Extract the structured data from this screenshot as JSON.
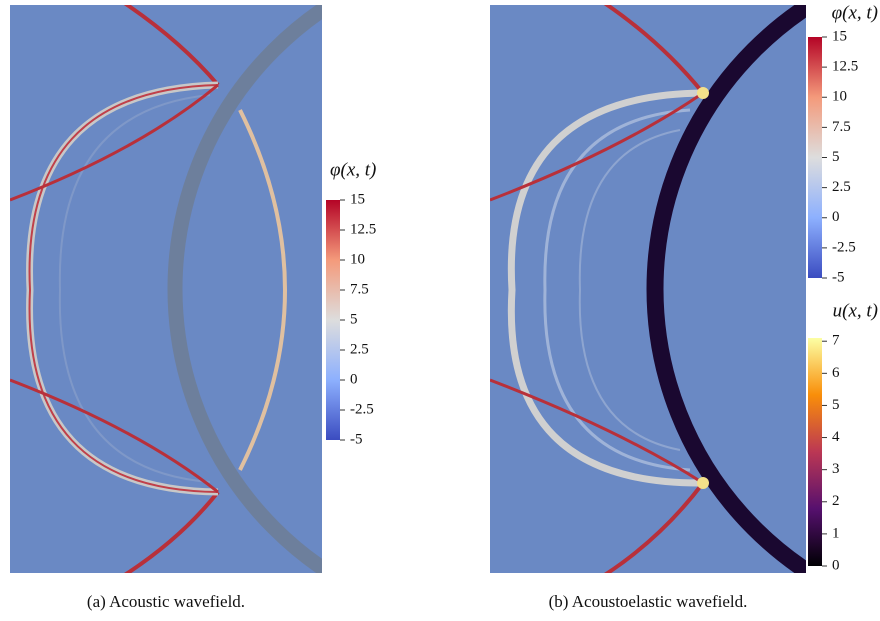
{
  "panels": [
    {
      "caption": "(a) Acoustic wavefield.",
      "colorbars": [
        {
          "title": "φ(x, t)",
          "lim": [
            -5,
            15
          ],
          "ticks": [
            15,
            12.5,
            10,
            7.5,
            5,
            2.5,
            0,
            -2.5,
            -5
          ]
        }
      ]
    },
    {
      "caption": "(b) Acoustoelastic wavefield.",
      "colorbars": [
        {
          "title": "φ(x, t)",
          "lim": [
            -5,
            15
          ],
          "ticks": [
            15,
            12.5,
            10,
            7.5,
            5,
            2.5,
            0,
            -2.5,
            -5
          ]
        },
        {
          "title": "u(x, t)",
          "lim": [
            0,
            7.1
          ],
          "ticks": [
            7,
            6,
            5,
            4,
            3,
            2,
            1,
            0
          ]
        }
      ]
    }
  ]
}
